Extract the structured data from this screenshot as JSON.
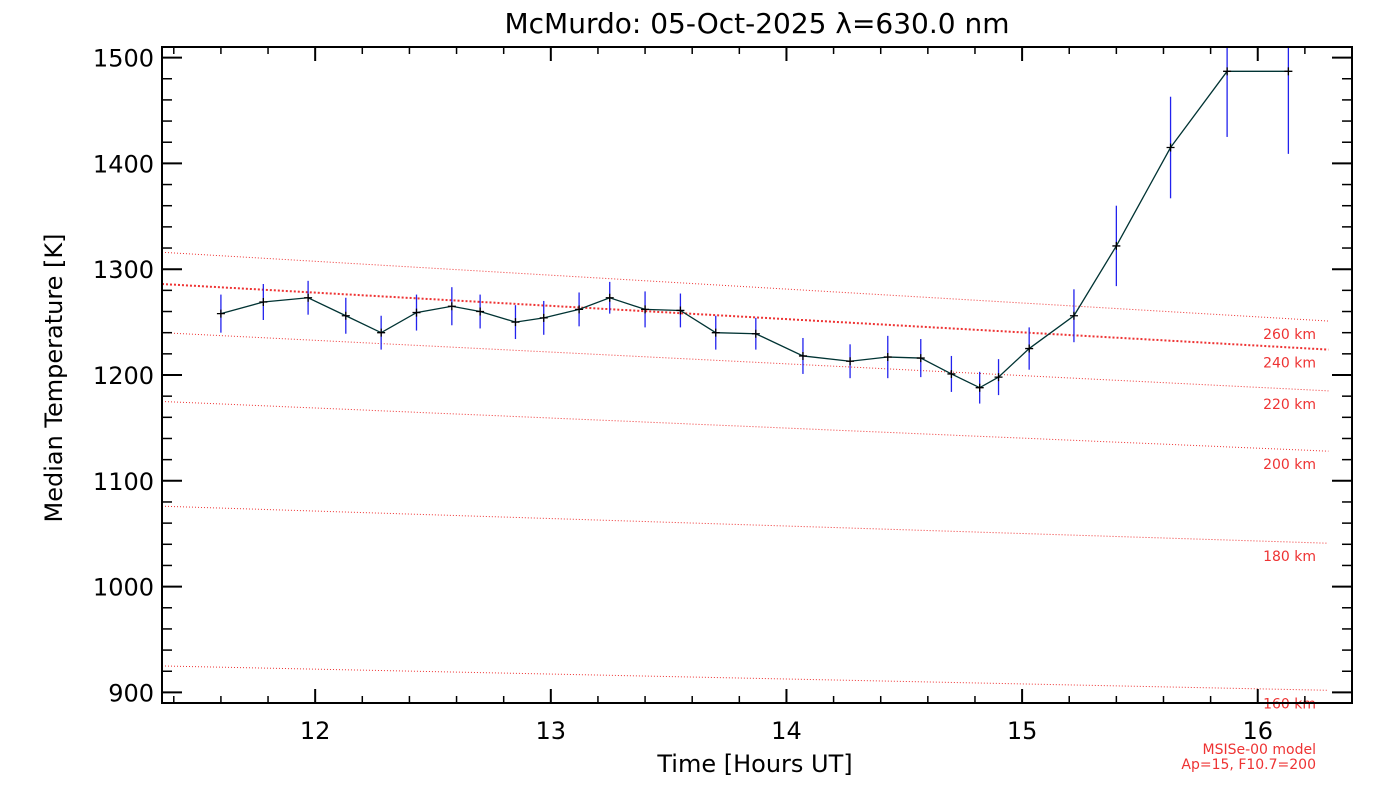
{
  "chart_data": {
    "type": "line",
    "title": "McMurdo: 05-Oct-2025 λ=630.0 nm",
    "xlabel": "Time [Hours UT]",
    "ylabel": "Median Temperature [K]",
    "xlim": [
      11.35,
      16.4
    ],
    "ylim": [
      890,
      1510
    ],
    "x_ticks": [
      12,
      13,
      14,
      15,
      16
    ],
    "x_tick_labels": [
      "12",
      "13",
      "14",
      "15",
      "16"
    ],
    "y_ticks": [
      900,
      1000,
      1100,
      1200,
      1300,
      1400,
      1500
    ],
    "y_tick_labels": [
      "900",
      "1000",
      "1100",
      "1200",
      "1300",
      "1400",
      "1500"
    ],
    "series": [
      {
        "name": "Median Temperature",
        "color": "#003333",
        "errorbar_color": "#2222ee",
        "x": [
          11.6,
          11.78,
          11.97,
          12.13,
          12.28,
          12.43,
          12.58,
          12.7,
          12.85,
          12.97,
          13.12,
          13.25,
          13.4,
          13.55,
          13.7,
          13.87,
          14.07,
          14.27,
          14.43,
          14.57,
          14.7,
          14.82,
          14.9,
          15.03,
          15.22,
          15.4,
          15.63,
          15.87,
          16.13
        ],
        "y": [
          1258,
          1269,
          1273,
          1256,
          1240,
          1259,
          1265,
          1260,
          1250,
          1254,
          1262,
          1273,
          1262,
          1261,
          1240,
          1239,
          1218,
          1213,
          1217,
          1216,
          1201,
          1188,
          1198,
          1225,
          1256,
          1322,
          1415,
          1487,
          1487
        ],
        "err": [
          18,
          17,
          16,
          17,
          16,
          17,
          18,
          16,
          16,
          16,
          16,
          15,
          17,
          16,
          16,
          15,
          17,
          16,
          20,
          18,
          17,
          15,
          17,
          20,
          25,
          38,
          48,
          62,
          78
        ]
      }
    ],
    "model": {
      "name": "MSISe-00 model",
      "params": "Ap=15, F10.7=200",
      "color": "#ee3333",
      "reference_altitude": "240 km",
      "lines": [
        {
          "label": "260 km",
          "y": [
            1316,
            1251
          ]
        },
        {
          "label": "240 km",
          "y": [
            1286,
            1224
          ]
        },
        {
          "label": "220 km",
          "y": [
            1240,
            1185
          ]
        },
        {
          "label": "200 km",
          "y": [
            1175,
            1128
          ]
        },
        {
          "label": "180 km",
          "y": [
            1076,
            1041
          ]
        },
        {
          "label": "160 km",
          "y": [
            925,
            902
          ]
        }
      ]
    }
  }
}
